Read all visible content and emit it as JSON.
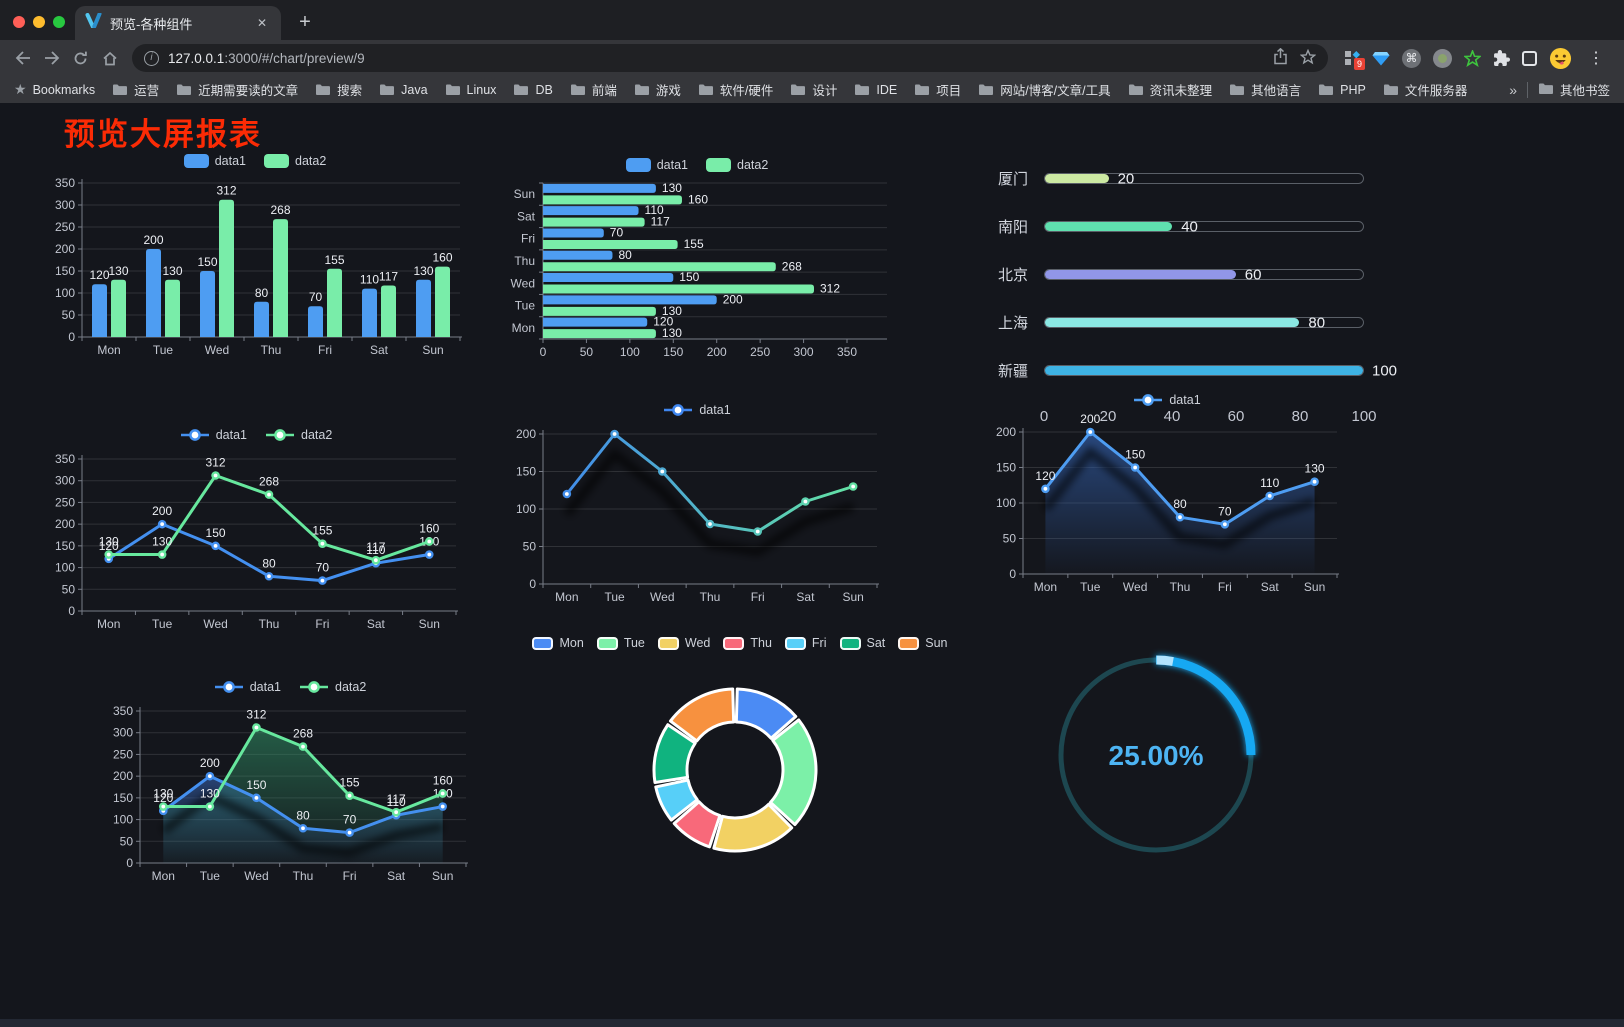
{
  "browser": {
    "tab": {
      "title": "预览-各种组件",
      "close_glyph": "✕",
      "new_tab_glyph": "+"
    },
    "url": {
      "host": "127.0.0.1",
      "path": ":3000/#/chart/preview/9",
      "info_glyph": "i"
    },
    "icons": {
      "menu_glyph": "⋮",
      "cmd_glyph": "⌘",
      "home_glyph": "⌂",
      "bookmarks_star": "★"
    },
    "extension_badge": "9",
    "bookmarks": {
      "root_label": "Bookmarks",
      "items": [
        "运营",
        "近期需要读的文章",
        "搜索",
        "Java",
        "Linux",
        "DB",
        "前端",
        "游戏",
        "软件/硬件",
        "设计",
        "IDE",
        "项目",
        "网站/博客/文章/工具",
        "资讯未整理",
        "其他语言",
        "PHP",
        "文件服务器"
      ],
      "overflow_glyph": "»",
      "other_label": "其他书签"
    }
  },
  "page": {
    "title": "预览大屏报表",
    "title_color": "#fb2b05",
    "background": "#14161c"
  },
  "chart_data": [
    {
      "id": "bar",
      "type": "bar",
      "categories": [
        "Mon",
        "Tue",
        "Wed",
        "Thu",
        "Fri",
        "Sat",
        "Sun"
      ],
      "series": [
        {
          "name": "data1",
          "color": "#4e9df2",
          "values": [
            120,
            200,
            150,
            80,
            70,
            110,
            130
          ]
        },
        {
          "name": "data2",
          "color": "#79eda9",
          "values": [
            130,
            130,
            312,
            268,
            155,
            117,
            160
          ]
        }
      ],
      "ylim": [
        0,
        350
      ],
      "yticks": [
        0,
        50,
        100,
        150,
        200,
        250,
        300,
        350
      ],
      "legend_position": "top",
      "grid": true
    },
    {
      "id": "hbar",
      "type": "hbar",
      "categories": [
        "Sun",
        "Sat",
        "Fri",
        "Thu",
        "Wed",
        "Tue",
        "Mon"
      ],
      "series": [
        {
          "name": "data1",
          "color": "#4e9df2",
          "values": [
            130,
            110,
            70,
            80,
            150,
            200,
            120
          ]
        },
        {
          "name": "data2",
          "color": "#79eda9",
          "values": [
            160,
            117,
            155,
            268,
            312,
            130,
            130
          ]
        }
      ],
      "xlim": [
        0,
        350
      ],
      "xticks": [
        0,
        50,
        100,
        150,
        200,
        250,
        300,
        350
      ],
      "legend_position": "top",
      "grid": true
    },
    {
      "id": "progress",
      "type": "progress",
      "max": 100,
      "items": [
        {
          "label": "厦门",
          "value": 20,
          "color": "#cce9a2"
        },
        {
          "label": "南阳",
          "value": 40,
          "color": "#5fe0af"
        },
        {
          "label": "北京",
          "value": 60,
          "color": "#9196e8"
        },
        {
          "label": "上海",
          "value": 80,
          "color": "#8be8e3"
        },
        {
          "label": "新疆",
          "value": 100,
          "color": "#3eb3e4"
        }
      ],
      "axis_ticks": [
        0,
        20,
        40,
        60,
        80,
        100
      ]
    },
    {
      "id": "line",
      "type": "line",
      "categories": [
        "Mon",
        "Tue",
        "Wed",
        "Thu",
        "Fri",
        "Sat",
        "Sun"
      ],
      "series": [
        {
          "name": "data1",
          "color": "#4490f0",
          "values": [
            120,
            200,
            150,
            80,
            70,
            110,
            130
          ],
          "labels": true
        },
        {
          "name": "data2",
          "color": "#67e89e",
          "values": [
            130,
            130,
            312,
            268,
            155,
            117,
            160
          ],
          "labels": true
        }
      ],
      "ylim": [
        0,
        350
      ],
      "yticks": [
        0,
        50,
        100,
        150,
        200,
        250,
        300,
        350
      ],
      "legend_position": "top",
      "grid": true
    },
    {
      "id": "gradient-line",
      "type": "line",
      "categories": [
        "Mon",
        "Tue",
        "Wed",
        "Thu",
        "Fri",
        "Sat",
        "Sun"
      ],
      "series": [
        {
          "name": "data1",
          "color": "#4490f0",
          "colors_gradient": [
            "#3f86ef",
            "#66e99e"
          ],
          "values": [
            120,
            200,
            150,
            80,
            70,
            110,
            130
          ],
          "labels": false
        }
      ],
      "ylim": [
        0,
        200
      ],
      "yticks": [
        0,
        50,
        100,
        150,
        200
      ],
      "shadow": true,
      "legend_position": "top",
      "grid": true
    },
    {
      "id": "area",
      "type": "line",
      "categories": [
        "Mon",
        "Tue",
        "Wed",
        "Thu",
        "Fri",
        "Sat",
        "Sun"
      ],
      "series": [
        {
          "name": "data1",
          "color": "#4e9df2",
          "values": [
            120,
            200,
            150,
            80,
            70,
            110,
            130
          ],
          "labels": true,
          "area": [
            "rgba(54,105,190,0.60)",
            "rgba(54,105,190,0.02)"
          ]
        }
      ],
      "ylim": [
        0,
        200
      ],
      "yticks": [
        0,
        50,
        100,
        150,
        200
      ],
      "shadow": true,
      "legend_position": "top",
      "grid": true
    },
    {
      "id": "area2",
      "type": "line",
      "categories": [
        "Mon",
        "Tue",
        "Wed",
        "Thu",
        "Fri",
        "Sat",
        "Sun"
      ],
      "series": [
        {
          "name": "data1",
          "color": "#4490f0",
          "values": [
            120,
            200,
            150,
            80,
            70,
            110,
            130
          ],
          "labels": true,
          "area": [
            "rgba(58,110,200,0.50)",
            "rgba(58,110,200,0.03)"
          ]
        },
        {
          "name": "data2",
          "color": "#67e89e",
          "values": [
            130,
            130,
            312,
            268,
            155,
            117,
            160
          ],
          "labels": true,
          "area": [
            "rgba(50,150,105,0.55)",
            "rgba(50,150,105,0.03)"
          ]
        }
      ],
      "ylim": [
        0,
        350
      ],
      "yticks": [
        0,
        50,
        100,
        150,
        200,
        250,
        300,
        350
      ],
      "shadow": true,
      "legend_position": "top",
      "grid": true
    },
    {
      "id": "donut",
      "type": "donut",
      "categories": [
        "Mon",
        "Tue",
        "Wed",
        "Thu",
        "Fri",
        "Sat",
        "Sun"
      ],
      "values": [
        120,
        200,
        150,
        80,
        70,
        110,
        130
      ],
      "colors": [
        "#4b8bf4",
        "#7cf0a8",
        "#f2d163",
        "#f8697a",
        "#57cff8",
        "#10b37f",
        "#f7913f"
      ],
      "border_color": "#ffffff",
      "legend_position": "top"
    },
    {
      "id": "gauge",
      "type": "gauge",
      "value": 25,
      "display": "25.00%",
      "arc_color": "#17a8f2",
      "track_color": "#1d4750",
      "text_color": "#4db4f3"
    }
  ]
}
